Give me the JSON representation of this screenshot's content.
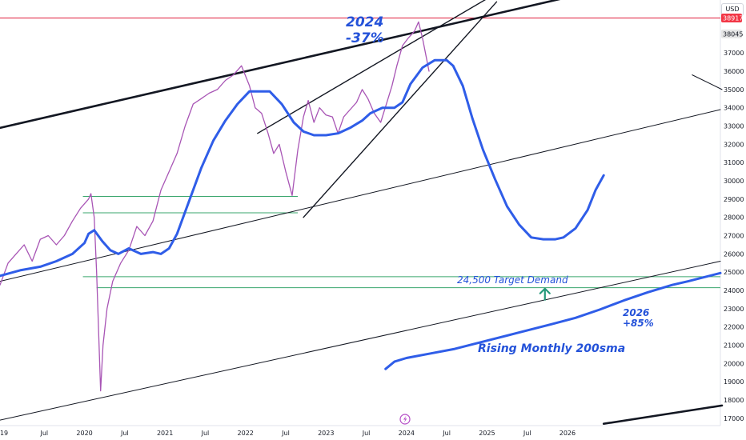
{
  "currency": "USD",
  "price_axis": {
    "ticks": [
      "17000",
      "18000",
      "19000",
      "20000",
      "21000",
      "22000",
      "23000",
      "24000",
      "25000",
      "26000",
      "27000",
      "28000",
      "29000",
      "30000",
      "31000",
      "32000",
      "33000",
      "34000",
      "35000",
      "36000",
      "37000"
    ],
    "price_tags": [
      {
        "label": "38917",
        "value": 38917,
        "color": "#f23645"
      },
      {
        "label": "38045",
        "value": 38045,
        "color": "#e6e6e6"
      }
    ]
  },
  "time_axis": {
    "ticks": [
      "19",
      "Jul",
      "2020",
      "Jul",
      "2021",
      "Jul",
      "2022",
      "Jul",
      "2023",
      "Jul",
      "2024",
      "Jul",
      "2025",
      "Jul",
      "2026"
    ],
    "tick_times": [
      2019.0,
      2019.5,
      2020.0,
      2020.5,
      2021.0,
      2021.5,
      2022.0,
      2022.5,
      2023.0,
      2023.5,
      2024.0,
      2024.5,
      2025.0,
      2025.5,
      2026.0
    ]
  },
  "annotations": {
    "year_2024": "2024",
    "drop_2024": "-37%",
    "target_demand": "24,500 Target Demand",
    "year_2026": "2026",
    "gain_2026": "+85%",
    "rising_sma": "Rising Monthly 200sma"
  },
  "chart_data": {
    "type": "line",
    "title": "",
    "xlabel": "",
    "ylabel": "",
    "xlim": [
      2018.95,
      2027.9
    ],
    "ylim": [
      16600,
      39900
    ],
    "series": [
      {
        "color": "#a855b5",
        "x": [
          2018.95,
          2019.05,
          2019.15,
          2019.25,
          2019.35,
          2019.45,
          2019.55,
          2019.65,
          2019.75,
          2019.85,
          2019.95,
          2020.05,
          2020.08,
          2020.12,
          2020.15,
          2020.2,
          2020.23,
          2020.28,
          2020.35,
          2020.45,
          2020.55,
          2020.65,
          2020.75,
          2020.85,
          2020.95,
          2021.05,
          2021.15,
          2021.25,
          2021.35,
          2021.45,
          2021.55,
          2021.65,
          2021.75,
          2021.85,
          2021.95,
          2022.05,
          2022.12,
          2022.2,
          2022.28,
          2022.35,
          2022.42,
          2022.5,
          2022.58,
          2022.65,
          2022.72,
          2022.78,
          2022.85,
          2022.92,
          2023.0,
          2023.08,
          2023.15,
          2023.22,
          2023.3,
          2023.38,
          2023.45,
          2023.52,
          2023.6,
          2023.68,
          2023.75,
          2023.82,
          2023.88,
          2023.95,
          2024.02,
          2024.1,
          2024.15,
          2024.2,
          2024.28
        ],
        "values": [
          24300,
          25500,
          26000,
          26500,
          25600,
          26800,
          27000,
          26500,
          27000,
          27800,
          28500,
          29000,
          29300,
          28000,
          25000,
          18500,
          21000,
          23000,
          24500,
          25500,
          26200,
          27500,
          27000,
          27800,
          29500,
          30500,
          31500,
          33000,
          34200,
          34500,
          34800,
          35000,
          35500,
          35800,
          36300,
          35200,
          34000,
          33700,
          32600,
          31500,
          32000,
          30500,
          29200,
          31700,
          33500,
          34400,
          33200,
          34000,
          33600,
          33500,
          32600,
          33500,
          33900,
          34300,
          35000,
          34500,
          33700,
          33200,
          34200,
          35200,
          36300,
          37400,
          37800,
          38200,
          38700,
          37800,
          36000
        ]
      },
      {
        "color": "#2f5de8",
        "x": [
          2018.95,
          2019.2,
          2019.45,
          2019.65,
          2019.85,
          2020.0,
          2020.05,
          2020.12,
          2020.22,
          2020.32,
          2020.42,
          2020.55,
          2020.7,
          2020.85,
          2020.95,
          2021.05,
          2021.15,
          2021.3,
          2021.45,
          2021.6,
          2021.75,
          2021.9,
          2022.05,
          2022.15,
          2022.3,
          2022.45,
          2022.6,
          2022.72,
          2022.85,
          2023.0,
          2023.15,
          2023.3,
          2023.45,
          2023.55,
          2023.7,
          2023.85,
          2023.95,
          2024.05,
          2024.2,
          2024.35,
          2024.5,
          2024.58,
          2024.7,
          2024.82,
          2024.95,
          2025.1,
          2025.25,
          2025.4,
          2025.55,
          2025.7,
          2025.85,
          2025.95,
          2026.1,
          2026.25,
          2026.35,
          2026.45
        ],
        "values": [
          24800,
          25100,
          25300,
          25600,
          26000,
          26600,
          27100,
          27300,
          26700,
          26200,
          26000,
          26300,
          26000,
          26100,
          26000,
          26300,
          27100,
          28900,
          30700,
          32200,
          33300,
          34200,
          34900,
          34900,
          34900,
          34200,
          33200,
          32700,
          32500,
          32500,
          32600,
          32900,
          33300,
          33700,
          34000,
          34000,
          34300,
          35300,
          36200,
          36600,
          36600,
          36300,
          35200,
          33400,
          31700,
          30100,
          28600,
          27600,
          26900,
          26800,
          26800,
          26900,
          27400,
          28400,
          29500,
          30300
        ]
      },
      {
        "color": "#2f5de8",
        "x": [
          2023.74,
          2023.85,
          2024.0,
          2024.3,
          2024.6,
          2025.0,
          2025.4,
          2025.8,
          2026.1,
          2026.4,
          2026.7,
          2027.0,
          2027.3,
          2027.5,
          2027.9
        ],
        "values": [
          19700,
          20100,
          20300,
          20550,
          20800,
          21250,
          21700,
          22150,
          22500,
          22950,
          23450,
          23900,
          24300,
          24500,
          24950
        ]
      }
    ],
    "trendlines": [
      {
        "color": "#131722",
        "x": [
          2018.95,
          2026.25
        ],
        "values": [
          32900,
          40300
        ]
      },
      {
        "color": "#131722",
        "x": [
          2022.15,
          2025.05
        ],
        "values": [
          32600,
          40100
        ]
      },
      {
        "color": "#131722",
        "x": [
          2022.72,
          2025.12
        ],
        "values": [
          28000,
          39800
        ]
      },
      {
        "color": "#131722",
        "x": [
          2018.95,
          2027.9
        ],
        "values": [
          24500,
          33900
        ]
      },
      {
        "color": "#131722",
        "x": [
          2018.95,
          2027.9
        ],
        "values": [
          16900,
          25600
        ]
      },
      {
        "color": "#131722",
        "x": [
          2027.55,
          2027.92
        ],
        "values": [
          35800,
          35000
        ]
      },
      {
        "color": "#131722",
        "x": [
          2026.45,
          2027.92
        ],
        "values": [
          16700,
          17700
        ]
      }
    ],
    "horizontal_lines": [
      {
        "color": "#e01e3c",
        "value": 38917,
        "x": [
          2018.95,
          2027.9
        ]
      },
      {
        "color": "#3aa66d",
        "value": 29150,
        "x": [
          2019.98,
          2022.65
        ]
      },
      {
        "color": "#3aa66d",
        "value": 28250,
        "x": [
          2019.98,
          2022.65
        ]
      },
      {
        "color": "#3aa66d",
        "value": 24750,
        "x": [
          2019.98,
          2027.9
        ]
      },
      {
        "color": "#3aa66d",
        "value": 24150,
        "x": [
          2020.15,
          2027.9
        ]
      }
    ],
    "arrow": {
      "color": "#22997a",
      "x": 2025.72,
      "from": 23450,
      "to": 24100
    }
  }
}
